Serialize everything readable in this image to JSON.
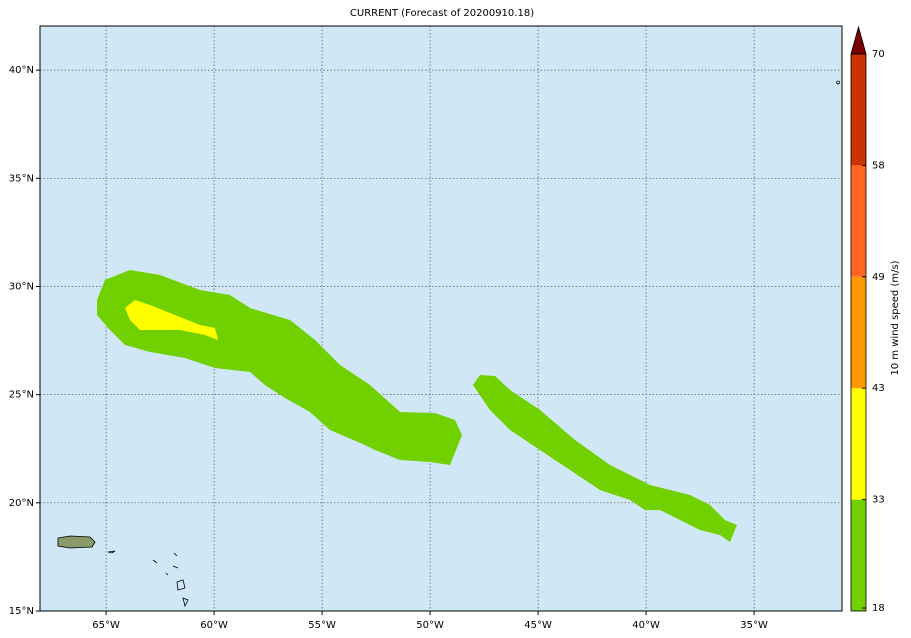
{
  "map": {
    "title": "CURRENT (Forecast of 20200910.18)",
    "xlim": [
      -68.06,
      -30.93
    ],
    "ylim": [
      15,
      42.04
    ],
    "xticks": [
      {
        "value": -65,
        "label": "65°W"
      },
      {
        "value": -60,
        "label": "60°W"
      },
      {
        "value": -55,
        "label": "55°W"
      },
      {
        "value": -50,
        "label": "50°W"
      },
      {
        "value": -45,
        "label": "45°W"
      },
      {
        "value": -40,
        "label": "40°W"
      },
      {
        "value": -35,
        "label": "35°W"
      }
    ],
    "yticks": [
      {
        "value": 15,
        "label": "15°N"
      },
      {
        "value": 20,
        "label": "20°N"
      },
      {
        "value": 25,
        "label": "25°N"
      },
      {
        "value": 30,
        "label": "30°N"
      },
      {
        "value": 35,
        "label": "35°N"
      },
      {
        "value": 40,
        "label": "40°N"
      }
    ],
    "grid": true,
    "colorbar": {
      "label": "10 m wind speed (m/s)",
      "ticks": [
        18,
        33,
        43,
        49,
        58,
        70
      ],
      "colors": [
        "#70d000",
        "#ffff00",
        "#ff9900",
        "#ff6622",
        "#cc3300"
      ],
      "extend_color": "#7a0000"
    }
  }
}
